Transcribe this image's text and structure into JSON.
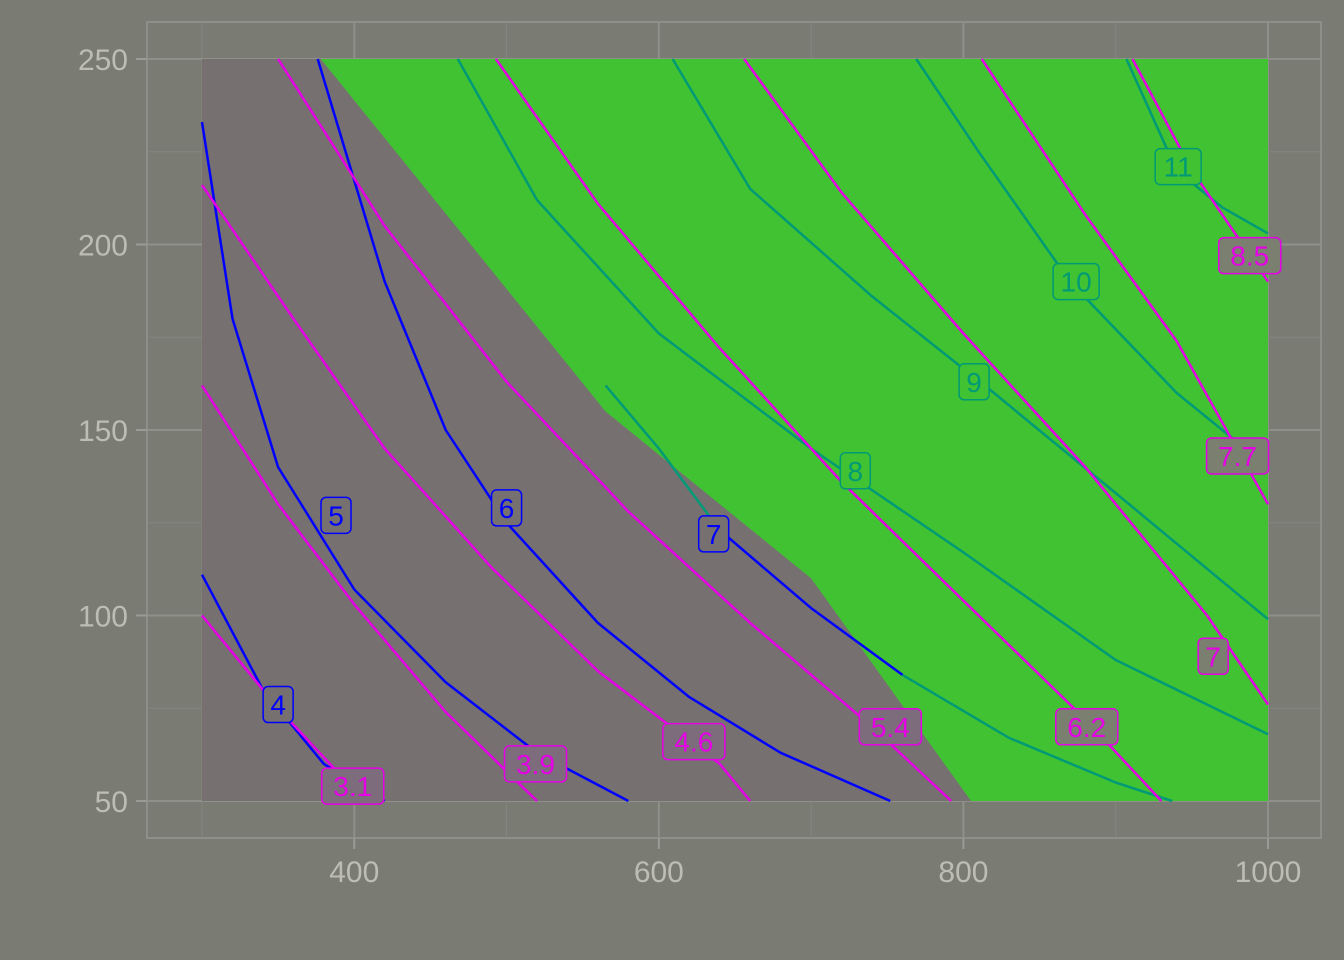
{
  "chart_data": {
    "type": "contour",
    "title": "",
    "xlabel": "",
    "ylabel": "",
    "xlim": [
      300,
      1000
    ],
    "ylim": [
      50,
      250
    ],
    "x_ticks": [
      400,
      600,
      800,
      1000
    ],
    "y_ticks": [
      50,
      100,
      150,
      200,
      250
    ],
    "grid": true,
    "colors": {
      "background": "#7a7b73",
      "feasible_region": "#41c233",
      "infeasible_region": "#767071",
      "contour_a": "#0000ff",
      "contour_a_feasible": "#009a76",
      "contour_b": "#e600e6"
    },
    "regions": {
      "boundary": [
        [
          378,
          250
        ],
        [
          565,
          155
        ],
        [
          700,
          110
        ],
        [
          805,
          50
        ]
      ]
    },
    "contours_a": [
      {
        "label": "4",
        "label_at": [
          350,
          76
        ],
        "points": [
          [
            300,
            111
          ],
          [
            340,
            80
          ],
          [
            380,
            60
          ],
          [
            420,
            50
          ]
        ]
      },
      {
        "label": "5",
        "label_at": [
          388,
          127
        ],
        "points": [
          [
            300,
            233
          ],
          [
            320,
            180
          ],
          [
            350,
            140
          ],
          [
            400,
            107
          ],
          [
            460,
            82
          ],
          [
            520,
            63
          ],
          [
            580,
            50
          ]
        ]
      },
      {
        "label": "6",
        "label_at": [
          500,
          129
        ],
        "points": [
          [
            376,
            250
          ],
          [
            420,
            190
          ],
          [
            460,
            150
          ],
          [
            500,
            125
          ],
          [
            560,
            98
          ],
          [
            620,
            78
          ],
          [
            680,
            63
          ],
          [
            752,
            50
          ]
        ]
      },
      {
        "label": "7",
        "label_at": [
          636,
          122
        ],
        "points": [
          [
            565,
            162
          ],
          [
            600,
            145
          ],
          [
            640,
            123
          ],
          [
            700,
            102
          ],
          [
            760,
            84
          ],
          [
            830,
            67
          ],
          [
            900,
            55
          ],
          [
            937,
            50
          ]
        ]
      },
      {
        "label": "8",
        "label_at": [
          729,
          139
        ],
        "points": [
          [
            468,
            250
          ],
          [
            520,
            212
          ],
          [
            600,
            176
          ],
          [
            700,
            145
          ],
          [
            800,
            117
          ],
          [
            900,
            88
          ],
          [
            1000,
            68
          ]
        ]
      },
      {
        "label": "9",
        "label_at": [
          807,
          163
        ],
        "points": [
          [
            609,
            250
          ],
          [
            660,
            215
          ],
          [
            740,
            186
          ],
          [
            820,
            160
          ],
          [
            900,
            133
          ],
          [
            1000,
            99
          ]
        ]
      },
      {
        "label": "10",
        "label_at": [
          874,
          190
        ],
        "points": [
          [
            769,
            250
          ],
          [
            810,
            225
          ],
          [
            870,
            190
          ],
          [
            940,
            160
          ],
          [
            1000,
            140
          ]
        ]
      },
      {
        "label": "11",
        "label_at": [
          941,
          221
        ],
        "points": [
          [
            907,
            250
          ],
          [
            940,
            220
          ],
          [
            970,
            210
          ],
          [
            1000,
            203
          ]
        ]
      }
    ],
    "contours_b": [
      {
        "label": "3.1",
        "label_at": [
          399,
          54
        ],
        "points": [
          [
            300,
            100
          ],
          [
            350,
            75
          ],
          [
            400,
            53
          ],
          [
            405,
            50
          ]
        ]
      },
      {
        "label": "3.9",
        "label_at": [
          519,
          60
        ],
        "points": [
          [
            300,
            162
          ],
          [
            350,
            130
          ],
          [
            400,
            103
          ],
          [
            460,
            74
          ],
          [
            520,
            50
          ]
        ]
      },
      {
        "label": "4.6",
        "label_at": [
          623,
          66
        ],
        "points": [
          [
            300,
            216
          ],
          [
            360,
            180
          ],
          [
            420,
            145
          ],
          [
            490,
            113
          ],
          [
            560,
            85
          ],
          [
            640,
            60
          ],
          [
            660,
            50
          ]
        ]
      },
      {
        "label": "5.4",
        "label_at": [
          752,
          70
        ],
        "points": [
          [
            350,
            250
          ],
          [
            420,
            205
          ],
          [
            500,
            163
          ],
          [
            580,
            128
          ],
          [
            660,
            98
          ],
          [
            740,
            70
          ],
          [
            792,
            50
          ]
        ]
      },
      {
        "label": "6.2",
        "label_at": [
          881,
          70
        ],
        "points": [
          [
            493,
            250
          ],
          [
            560,
            211
          ],
          [
            640,
            172
          ],
          [
            720,
            136
          ],
          [
            800,
            104
          ],
          [
            880,
            72
          ],
          [
            930,
            50
          ]
        ]
      },
      {
        "label": "7",
        "label_at": [
          964,
          89
        ],
        "points": [
          [
            656,
            250
          ],
          [
            720,
            214
          ],
          [
            800,
            176
          ],
          [
            880,
            140
          ],
          [
            960,
            100
          ],
          [
            1000,
            76
          ]
        ]
      },
      {
        "label": "7.7",
        "label_at": [
          980,
          143
        ],
        "points": [
          [
            812,
            250
          ],
          [
            880,
            208
          ],
          [
            940,
            174
          ],
          [
            1000,
            130
          ]
        ]
      },
      {
        "label": "8.5",
        "label_at": [
          988,
          197
        ],
        "points": [
          [
            911,
            250
          ],
          [
            950,
            220
          ],
          [
            1000,
            190
          ]
        ]
      }
    ]
  }
}
